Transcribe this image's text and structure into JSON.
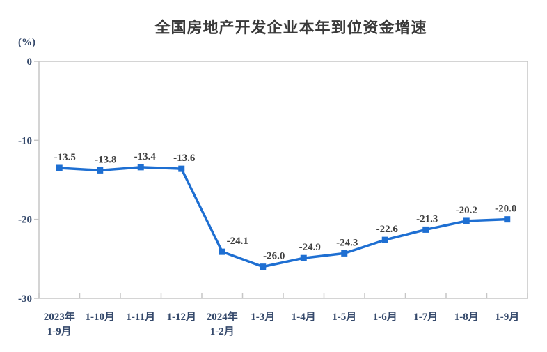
{
  "chart_data": {
    "type": "line",
    "title": "全国房地产开发企业本年到位资金增速",
    "unit_label": "(%)",
    "categories": [
      "2023年\n1-9月",
      "1-10月",
      "1-11月",
      "1-12月",
      "2024年\n1-2月",
      "1-3月",
      "1-4月",
      "1-5月",
      "1-6月",
      "1-7月",
      "1-8月",
      "1-9月"
    ],
    "values": [
      -13.5,
      -13.8,
      -13.4,
      -13.6,
      -24.1,
      -26.0,
      -24.9,
      -24.3,
      -22.6,
      -21.3,
      -20.2,
      -20.0
    ],
    "data_labels": [
      "-13.5",
      "-13.8",
      "-13.4",
      "-13.6",
      "-24.1",
      "-26.0",
      "-24.9",
      "-24.3",
      "-22.6",
      "-21.3",
      "-20.2",
      "-20.0"
    ],
    "xlabel": "",
    "ylabel": "(%)",
    "ylim": [
      -30,
      0
    ],
    "yticks": [
      0,
      -10,
      -20,
      -30
    ],
    "grid": false,
    "legend": "none",
    "marker": "square",
    "colors": {
      "line": "#1e6fd2",
      "marker_fill": "#1e6fd2",
      "axis_border": "#c6c6c6",
      "tick_label": "#35496b",
      "data_label": "#3e3e3e",
      "title": "#3a3a3a"
    },
    "layout": {
      "label_dx": [
        8,
        8,
        6,
        4,
        22,
        16,
        9,
        4,
        3,
        2,
        0,
        -2
      ]
    }
  }
}
